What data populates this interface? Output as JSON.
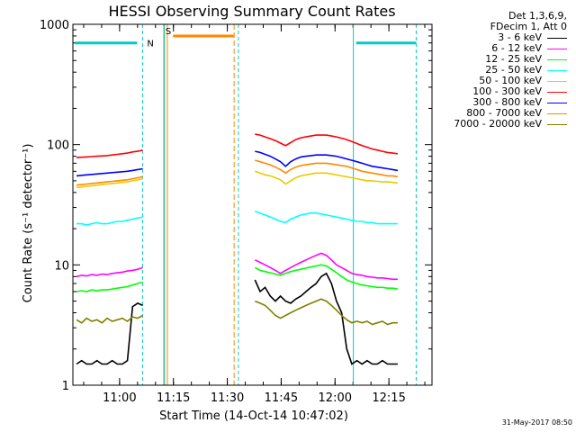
{
  "chart_data": {
    "type": "line",
    "title": "HESSI Observing Summary Count Rates",
    "xlabel": "Start Time (14-Oct-14 10:47:02)",
    "ylabel": "Count Rate (s⁻¹ detector⁻¹)",
    "ylog": true,
    "ylim": [
      1,
      1000
    ],
    "xlim_minutes": [
      0,
      100
    ],
    "xticks": [
      {
        "pos": 13.0,
        "label": "11:00"
      },
      {
        "pos": 28.0,
        "label": "11:15"
      },
      {
        "pos": 43.0,
        "label": "11:30"
      },
      {
        "pos": 58.0,
        "label": "11:45"
      },
      {
        "pos": 73.0,
        "label": "12:00"
      },
      {
        "pos": 88.0,
        "label": "12:15"
      }
    ],
    "yticks": [
      {
        "value": 1,
        "label": "1"
      },
      {
        "value": 10,
        "label": "10"
      },
      {
        "value": 100,
        "label": "100"
      },
      {
        "value": 1000,
        "label": "1000"
      }
    ],
    "legend_header": [
      "Det 1,3,6,9,",
      "FDecim 1, Att 0"
    ],
    "series": [
      {
        "name": "3 - 6 keV",
        "color": "#000000",
        "values": [
          1.5,
          1.6,
          1.5,
          1.5,
          1.6,
          1.5,
          1.5,
          1.6,
          1.5,
          1.5,
          1.6,
          4.5,
          4.8,
          4.6,
          null,
          null,
          null,
          null,
          null,
          null,
          null,
          null,
          null,
          null,
          null,
          null,
          null,
          null,
          null,
          null,
          null,
          null,
          null,
          null,
          null,
          7.5,
          6.0,
          6.5,
          5.5,
          5.0,
          5.5,
          5.0,
          4.8,
          5.2,
          5.5,
          6.0,
          6.5,
          7.0,
          8.0,
          8.5,
          7.0,
          5.0,
          4.0,
          2.0,
          1.5,
          1.6,
          1.5,
          1.6,
          1.5,
          1.5,
          1.6,
          1.5,
          1.5,
          1.5
        ],
        "x0": 1.0,
        "dx": 1.42
      },
      {
        "name": "6 - 12 keV",
        "color": "#ff00ff",
        "values": [
          8.0,
          8.2,
          8.1,
          8.3,
          8.2,
          8.4,
          8.3,
          8.5,
          8.6,
          8.7,
          8.9,
          9.0,
          9.2,
          9.5,
          null,
          null,
          null,
          null,
          null,
          null,
          null,
          null,
          null,
          null,
          null,
          null,
          null,
          null,
          null,
          null,
          null,
          null,
          null,
          null,
          null,
          11.0,
          10.5,
          10.0,
          9.5,
          9.0,
          8.5,
          9.0,
          9.5,
          10.0,
          10.5,
          11.0,
          11.5,
          12.0,
          12.5,
          12.0,
          11.0,
          10.0,
          9.5,
          9.0,
          8.5,
          8.3,
          8.2,
          8.0,
          7.9,
          7.8,
          7.8,
          7.7,
          7.6,
          7.6
        ],
        "x0": 1.0,
        "dx": 1.42
      },
      {
        "name": "12 - 25 keV",
        "color": "#00ff00",
        "values": [
          6.0,
          6.1,
          6.0,
          6.2,
          6.1,
          6.2,
          6.2,
          6.3,
          6.4,
          6.5,
          6.6,
          6.8,
          7.0,
          7.2,
          null,
          null,
          null,
          null,
          null,
          null,
          null,
          null,
          null,
          null,
          null,
          null,
          null,
          null,
          null,
          null,
          null,
          null,
          null,
          null,
          null,
          9.5,
          9.0,
          8.8,
          8.6,
          8.4,
          8.2,
          8.5,
          8.8,
          9.0,
          9.2,
          9.4,
          9.6,
          9.8,
          10.0,
          9.8,
          9.2,
          8.6,
          8.0,
          7.5,
          7.2,
          7.0,
          6.8,
          6.7,
          6.6,
          6.5,
          6.5,
          6.4,
          6.4,
          6.3
        ],
        "x0": 1.0,
        "dx": 1.42
      },
      {
        "name": "25 - 50 keV",
        "color": "#00ffff",
        "values": [
          22,
          22,
          21.5,
          22,
          22.5,
          22,
          22,
          22.5,
          23,
          23,
          23.5,
          24,
          24.5,
          25,
          null,
          null,
          null,
          null,
          null,
          null,
          null,
          null,
          null,
          null,
          null,
          null,
          null,
          null,
          null,
          null,
          null,
          null,
          null,
          null,
          null,
          28,
          27,
          26,
          25,
          24,
          23,
          22.5,
          24,
          25,
          26,
          26.5,
          27,
          27,
          26.5,
          26,
          25.5,
          25,
          24.5,
          24,
          23.5,
          23,
          23,
          22.5,
          22.5,
          22,
          22,
          22,
          22,
          22
        ],
        "x0": 1.0,
        "dx": 1.42
      },
      {
        "name": "50 - 100 keV",
        "color": "#e6cc00",
        "values": [
          44,
          44.5,
          45,
          45.5,
          46,
          46.5,
          47,
          47.5,
          48,
          48.5,
          49,
          50,
          51,
          52,
          null,
          null,
          null,
          null,
          null,
          null,
          null,
          null,
          null,
          null,
          null,
          null,
          null,
          null,
          null,
          null,
          null,
          null,
          null,
          null,
          null,
          60,
          58,
          56,
          55,
          53,
          51,
          47,
          50,
          53,
          55,
          56,
          57,
          58,
          58,
          58,
          57,
          56,
          55,
          54,
          53,
          52,
          51,
          50,
          50,
          49.5,
          49,
          49,
          48.5,
          48
        ],
        "x0": 1.0,
        "dx": 1.42
      },
      {
        "name": "100 - 300 keV",
        "color": "#ff0000",
        "values": [
          78,
          78.5,
          79,
          79.5,
          80,
          80.5,
          81,
          82,
          83,
          84,
          85,
          87,
          88,
          90,
          null,
          null,
          null,
          null,
          null,
          null,
          null,
          null,
          null,
          null,
          null,
          null,
          null,
          null,
          null,
          null,
          null,
          null,
          null,
          null,
          null,
          122,
          120,
          116,
          112,
          108,
          103,
          98,
          104,
          110,
          114,
          116,
          118,
          120,
          120,
          120,
          118,
          116,
          113,
          110,
          106,
          102,
          98,
          95,
          92,
          90,
          88,
          86,
          85,
          84
        ],
        "x0": 1.0,
        "dx": 1.42
      },
      {
        "name": "300 - 800 keV",
        "color": "#0000ff",
        "values": [
          55,
          55.5,
          56,
          56.5,
          57,
          57.5,
          58,
          58.5,
          59,
          59.5,
          60,
          61,
          62,
          63,
          null,
          null,
          null,
          null,
          null,
          null,
          null,
          null,
          null,
          null,
          null,
          null,
          null,
          null,
          null,
          null,
          null,
          null,
          null,
          null,
          null,
          88,
          86,
          83,
          80,
          76,
          72,
          66,
          72,
          76,
          79,
          80,
          81,
          82,
          82,
          82,
          81,
          80,
          78,
          76,
          74,
          72,
          70,
          68,
          66,
          65,
          64,
          63,
          62,
          61
        ],
        "x0": 1.0,
        "dx": 1.42
      },
      {
        "name": "800 - 7000 keV",
        "color": "#ff8800",
        "values": [
          46,
          46.5,
          47,
          47.5,
          48,
          48.5,
          49,
          49.5,
          50,
          50.5,
          51,
          52,
          53,
          54,
          null,
          null,
          null,
          null,
          null,
          null,
          null,
          null,
          null,
          null,
          null,
          null,
          null,
          null,
          null,
          null,
          null,
          null,
          null,
          null,
          null,
          74,
          72,
          70,
          68,
          65,
          62,
          58,
          62,
          65,
          67,
          68,
          69,
          70,
          70,
          70,
          69,
          68,
          67,
          66,
          64,
          62,
          60,
          59,
          58,
          57,
          56,
          55,
          55,
          54
        ],
        "x0": 1.0,
        "dx": 1.42
      },
      {
        "name": "7000 - 20000 keV",
        "color": "#808000",
        "values": [
          3.5,
          3.3,
          3.6,
          3.4,
          3.5,
          3.3,
          3.6,
          3.4,
          3.5,
          3.6,
          3.4,
          3.7,
          3.6,
          3.8,
          null,
          null,
          null,
          null,
          null,
          null,
          null,
          null,
          null,
          null,
          null,
          null,
          null,
          null,
          null,
          null,
          null,
          null,
          null,
          null,
          null,
          5.0,
          4.8,
          4.6,
          4.2,
          3.8,
          3.6,
          3.8,
          4.0,
          4.2,
          4.4,
          4.6,
          4.8,
          5.0,
          5.2,
          5.0,
          4.6,
          4.2,
          3.8,
          3.5,
          3.3,
          3.4,
          3.3,
          3.4,
          3.2,
          3.3,
          3.4,
          3.2,
          3.3,
          3.3
        ],
        "x0": 1.0,
        "dx": 1.42
      }
    ],
    "annotations": [
      {
        "label": "N",
        "color": "#00cccc"
      },
      {
        "label": "S",
        "color": "#ff8800"
      }
    ],
    "night_level": 700,
    "saa_level": 800
  },
  "timestamp": "31-May-2017 08:50"
}
